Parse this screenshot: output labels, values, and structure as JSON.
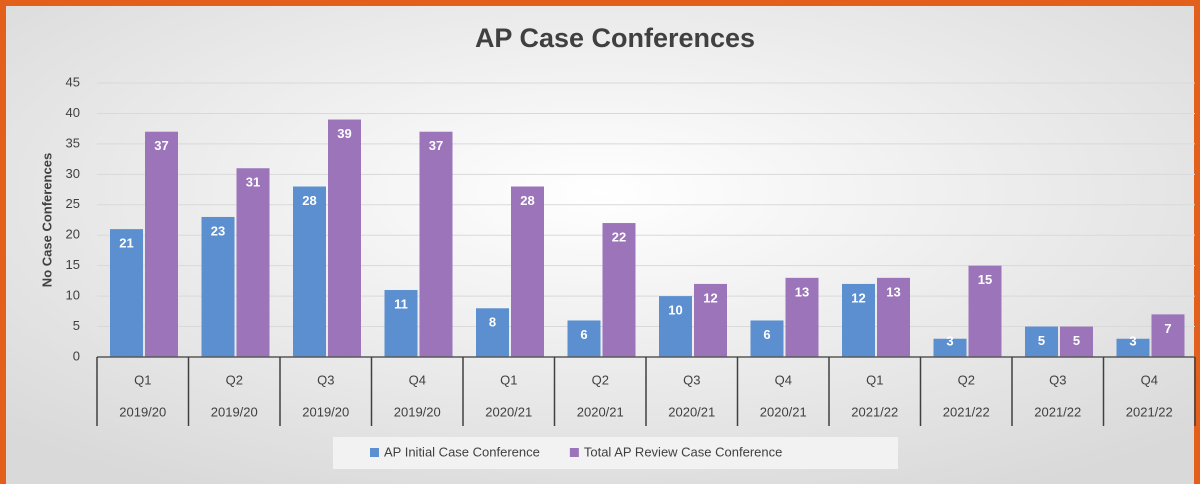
{
  "chart_data": {
    "type": "bar",
    "title": "AP Case Conferences",
    "y_label": "No Case Conferences",
    "categories": [
      "Q1",
      "Q2",
      "Q3",
      "Q4",
      "Q1",
      "Q2",
      "Q3",
      "Q4",
      "Q1",
      "Q2",
      "Q3",
      "Q4"
    ],
    "periods": [
      "2019/20",
      "2019/20",
      "2019/20",
      "2019/20",
      "2020/21",
      "2020/21",
      "2020/21",
      "2020/21",
      "2021/22",
      "2021/22",
      "2021/22",
      "2021/22"
    ],
    "series": [
      {
        "name": "AP Initial Case Conference",
        "color": "#5b8fd0",
        "values": [
          21,
          23,
          28,
          11,
          8,
          6,
          10,
          6,
          12,
          3,
          5,
          3
        ]
      },
      {
        "name": "Total AP Review Case Conference",
        "color": "#9b74b9",
        "values": [
          37,
          31,
          39,
          37,
          28,
          22,
          12,
          13,
          13,
          15,
          5,
          7
        ]
      }
    ],
    "ylim": [
      0,
      45
    ],
    "yticks": [
      0,
      5,
      10,
      15,
      20,
      25,
      30,
      35,
      40,
      45
    ],
    "grid": true,
    "legend": "bottom"
  }
}
